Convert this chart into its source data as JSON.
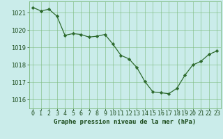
{
  "x": [
    0,
    1,
    2,
    3,
    4,
    5,
    6,
    7,
    8,
    9,
    10,
    11,
    12,
    13,
    14,
    15,
    16,
    17,
    18,
    19,
    20,
    21,
    22,
    23
  ],
  "y": [
    1021.3,
    1021.1,
    1021.2,
    1020.8,
    1019.7,
    1019.8,
    1019.75,
    1019.6,
    1019.65,
    1019.75,
    1019.2,
    1018.55,
    1018.35,
    1017.85,
    1017.05,
    1016.45,
    1016.4,
    1016.35,
    1016.65,
    1017.4,
    1018.0,
    1018.2,
    1018.6,
    1018.8
  ],
  "line_color": "#2d6a2d",
  "marker": "D",
  "marker_size": 2.2,
  "bg_color": "#caecea",
  "grid_color": "#7ab87a",
  "xlabel": "Graphe pression niveau de la mer (hPa)",
  "xlabel_color": "#1a4a1a",
  "tick_color": "#1a4a1a",
  "ylim": [
    1015.5,
    1021.65
  ],
  "xlim": [
    -0.5,
    23.5
  ],
  "yticks": [
    1016,
    1017,
    1018,
    1019,
    1020,
    1021
  ],
  "xticks": [
    0,
    1,
    2,
    3,
    4,
    5,
    6,
    7,
    8,
    9,
    10,
    11,
    12,
    13,
    14,
    15,
    16,
    17,
    18,
    19,
    20,
    21,
    22,
    23
  ],
  "tick_fontsize": 6.0,
  "xlabel_fontsize": 6.5
}
